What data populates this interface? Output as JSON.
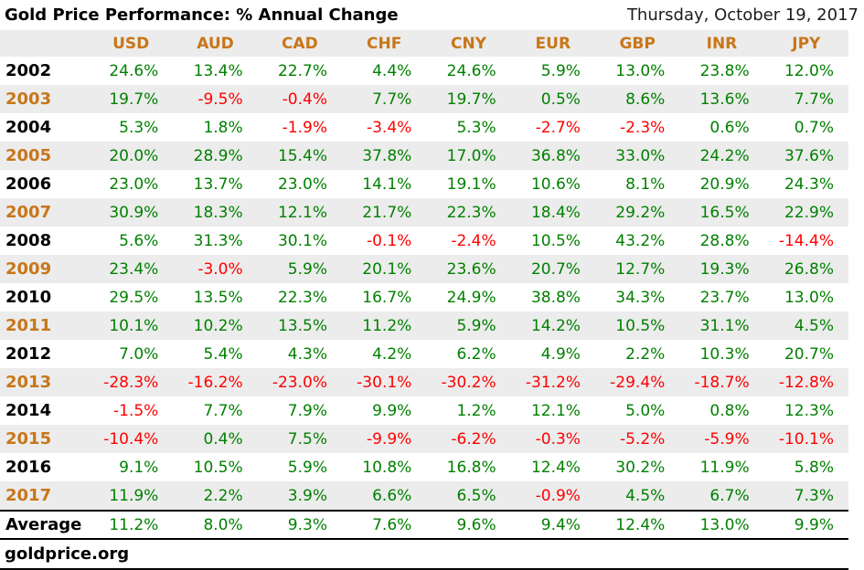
{
  "header": {
    "title": "Gold Price Performance: % Annual Change",
    "date": "Thursday, October 19, 2017"
  },
  "chart_data": {
    "type": "table",
    "columns": [
      "USD",
      "AUD",
      "CAD",
      "CHF",
      "CNY",
      "EUR",
      "GBP",
      "INR",
      "JPY"
    ],
    "rows": [
      {
        "year": "2002",
        "values": [
          "24.6%",
          "13.4%",
          "22.7%",
          "4.4%",
          "24.6%",
          "5.9%",
          "13.0%",
          "23.8%",
          "12.0%"
        ]
      },
      {
        "year": "2003",
        "values": [
          "19.7%",
          "-9.5%",
          "-0.4%",
          "7.7%",
          "19.7%",
          "0.5%",
          "8.6%",
          "13.6%",
          "7.7%"
        ]
      },
      {
        "year": "2004",
        "values": [
          "5.3%",
          "1.8%",
          "-1.9%",
          "-3.4%",
          "5.3%",
          "-2.7%",
          "-2.3%",
          "0.6%",
          "0.7%"
        ]
      },
      {
        "year": "2005",
        "values": [
          "20.0%",
          "28.9%",
          "15.4%",
          "37.8%",
          "17.0%",
          "36.8%",
          "33.0%",
          "24.2%",
          "37.6%"
        ]
      },
      {
        "year": "2006",
        "values": [
          "23.0%",
          "13.7%",
          "23.0%",
          "14.1%",
          "19.1%",
          "10.6%",
          "8.1%",
          "20.9%",
          "24.3%"
        ]
      },
      {
        "year": "2007",
        "values": [
          "30.9%",
          "18.3%",
          "12.1%",
          "21.7%",
          "22.3%",
          "18.4%",
          "29.2%",
          "16.5%",
          "22.9%"
        ]
      },
      {
        "year": "2008",
        "values": [
          "5.6%",
          "31.3%",
          "30.1%",
          "-0.1%",
          "-2.4%",
          "10.5%",
          "43.2%",
          "28.8%",
          "-14.4%"
        ]
      },
      {
        "year": "2009",
        "values": [
          "23.4%",
          "-3.0%",
          "5.9%",
          "20.1%",
          "23.6%",
          "20.7%",
          "12.7%",
          "19.3%",
          "26.8%"
        ]
      },
      {
        "year": "2010",
        "values": [
          "29.5%",
          "13.5%",
          "22.3%",
          "16.7%",
          "24.9%",
          "38.8%",
          "34.3%",
          "23.7%",
          "13.0%"
        ]
      },
      {
        "year": "2011",
        "values": [
          "10.1%",
          "10.2%",
          "13.5%",
          "11.2%",
          "5.9%",
          "14.2%",
          "10.5%",
          "31.1%",
          "4.5%"
        ]
      },
      {
        "year": "2012",
        "values": [
          "7.0%",
          "5.4%",
          "4.3%",
          "4.2%",
          "6.2%",
          "4.9%",
          "2.2%",
          "10.3%",
          "20.7%"
        ]
      },
      {
        "year": "2013",
        "values": [
          "-28.3%",
          "-16.2%",
          "-23.0%",
          "-30.1%",
          "-30.2%",
          "-31.2%",
          "-29.4%",
          "-18.7%",
          "-12.8%"
        ]
      },
      {
        "year": "2014",
        "values": [
          "-1.5%",
          "7.7%",
          "7.9%",
          "9.9%",
          "1.2%",
          "12.1%",
          "5.0%",
          "0.8%",
          "12.3%"
        ]
      },
      {
        "year": "2015",
        "values": [
          "-10.4%",
          "0.4%",
          "7.5%",
          "-9.9%",
          "-6.2%",
          "-0.3%",
          "-5.2%",
          "-5.9%",
          "-10.1%"
        ]
      },
      {
        "year": "2016",
        "values": [
          "9.1%",
          "10.5%",
          "5.9%",
          "10.8%",
          "16.8%",
          "12.4%",
          "30.2%",
          "11.9%",
          "5.8%"
        ]
      },
      {
        "year": "2017",
        "values": [
          "11.9%",
          "2.2%",
          "3.9%",
          "6.6%",
          "6.5%",
          "-0.9%",
          "4.5%",
          "6.7%",
          "7.3%"
        ]
      }
    ],
    "summary_row": {
      "label": "Average",
      "values": [
        "11.2%",
        "8.0%",
        "9.3%",
        "7.6%",
        "9.6%",
        "9.4%",
        "12.4%",
        "13.0%",
        "9.9%"
      ]
    },
    "layout_hints": {
      "stripe_rows": "odd rows (2003, 2005, ...) have gray background and orange year labels",
      "value_color_rule": "negative values red, non-negative values green"
    }
  },
  "footer": {
    "source": "goldprice.org"
  },
  "colors": {
    "positive_green": "#008000",
    "negative_red": "#fe0000",
    "accent_orange": "#c87619",
    "stripe_gray": "#ececec",
    "text_black": "#000000"
  }
}
